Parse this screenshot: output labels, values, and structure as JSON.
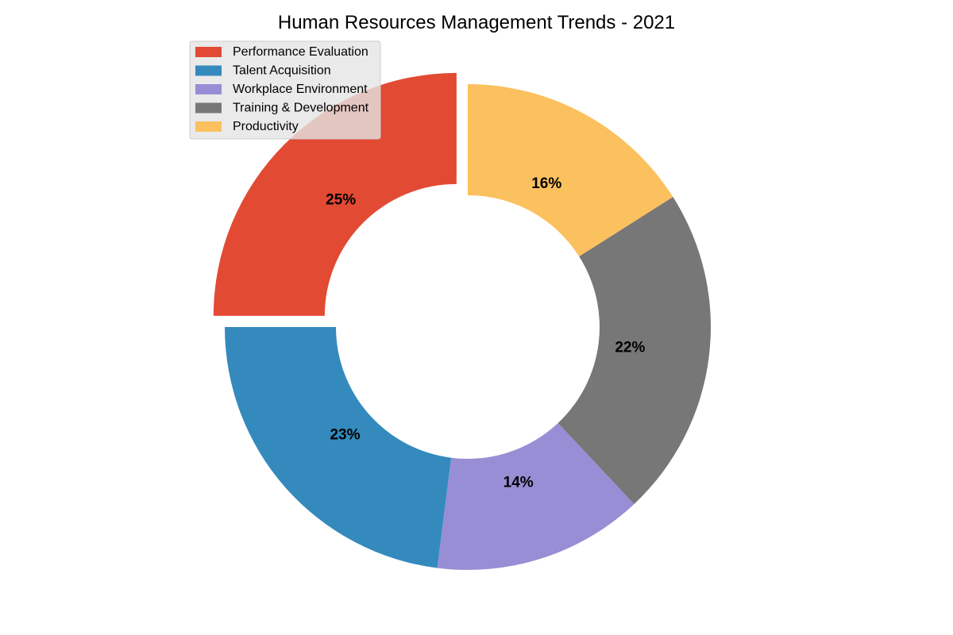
{
  "chart_data": {
    "type": "pie",
    "variant": "donut",
    "title": "Human Resources Management Trends - 2021",
    "categories": [
      "Performance Evaluation",
      "Talent Acquisition",
      "Workplace Environment",
      "Training & Development",
      "Productivity"
    ],
    "values": [
      25,
      23,
      14,
      22,
      16
    ],
    "labels": [
      "25%",
      "23%",
      "14%",
      "22%",
      "16%"
    ],
    "colors": [
      "#E24A33",
      "#348ABD",
      "#988ED5",
      "#777777",
      "#FBC15E"
    ],
    "exploded": [
      true,
      false,
      false,
      false,
      false
    ],
    "start_angle_deg": 90,
    "direction": "counterclockwise",
    "legend": {
      "placement": "top-left",
      "entries": [
        "Performance Evaluation",
        "Talent Acquisition",
        "Workplace Environment",
        "Training & Development",
        "Productivity"
      ]
    }
  }
}
